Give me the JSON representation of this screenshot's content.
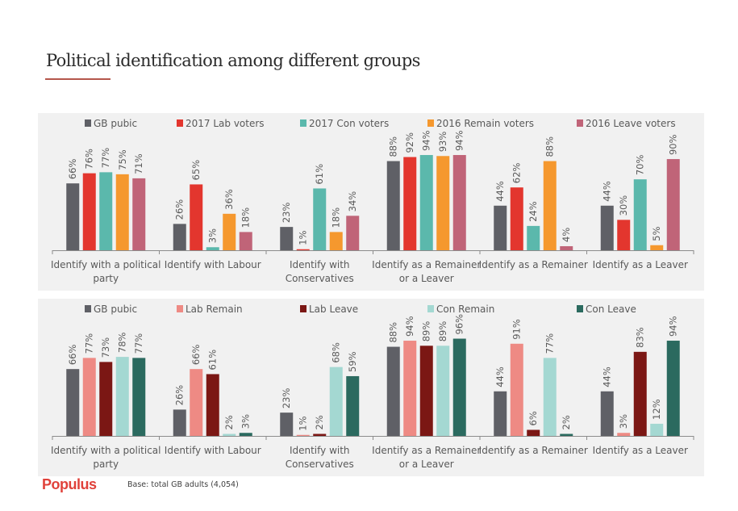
{
  "title": "Political identification among different groups",
  "footer": {
    "logo": "Populus",
    "base_note": "Base: total GB adults (4,054)"
  },
  "chart_data": [
    {
      "type": "bar",
      "title": "",
      "xlabel": "",
      "ylabel": "",
      "ylim": [
        0,
        100
      ],
      "grid": false,
      "legend_position": "top",
      "value_suffix": "%",
      "categories": [
        [
          "Identify with a political",
          "party"
        ],
        [
          "Identify with Labour"
        ],
        [
          "Identify with",
          "Conservatives"
        ],
        [
          "Identify as a Remainer",
          "or a Leaver"
        ],
        [
          "Identify as a Remainer"
        ],
        [
          "Identify as a Leaver"
        ]
      ],
      "series": [
        {
          "name": "GB pubic",
          "color": "#5f6066",
          "values": [
            66,
            26,
            23,
            88,
            44,
            44
          ]
        },
        {
          "name": "2017 Lab voters",
          "color": "#e3362e",
          "values": [
            76,
            65,
            1,
            92,
            62,
            30
          ]
        },
        {
          "name": "2017 Con voters",
          "color": "#5bb8ac",
          "values": [
            77,
            3,
            61,
            94,
            24,
            70
          ]
        },
        {
          "name": "2016 Remain voters",
          "color": "#f5982e",
          "values": [
            75,
            36,
            18,
            93,
            88,
            5
          ]
        },
        {
          "name": "2016 Leave voters",
          "color": "#c06478",
          "values": [
            71,
            18,
            34,
            94,
            4,
            90
          ]
        }
      ]
    },
    {
      "type": "bar",
      "title": "",
      "xlabel": "",
      "ylabel": "",
      "ylim": [
        0,
        100
      ],
      "grid": false,
      "legend_position": "top",
      "value_suffix": "%",
      "categories": [
        [
          "Identify with a political",
          "party"
        ],
        [
          "Identify with Labour"
        ],
        [
          "Identify with",
          "Conservatives"
        ],
        [
          "Identify as a Remainer",
          "or a Leaver"
        ],
        [
          "Identify as a Remainer"
        ],
        [
          "Identify as a Leaver"
        ]
      ],
      "series": [
        {
          "name": "GB pubic",
          "color": "#5f6066",
          "values": [
            66,
            26,
            23,
            88,
            44,
            44
          ]
        },
        {
          "name": "Lab Remain",
          "color": "#ee8a84",
          "values": [
            77,
            66,
            1,
            94,
            91,
            3
          ]
        },
        {
          "name": "Lab Leave",
          "color": "#7b1714",
          "values": [
            73,
            61,
            2,
            89,
            6,
            83
          ]
        },
        {
          "name": "Con Remain",
          "color": "#a4d8d2",
          "values": [
            78,
            2,
            68,
            89,
            77,
            12
          ]
        },
        {
          "name": "Con Leave",
          "color": "#2b6a5f",
          "values": [
            77,
            3,
            59,
            96,
            2,
            94
          ]
        }
      ]
    }
  ]
}
